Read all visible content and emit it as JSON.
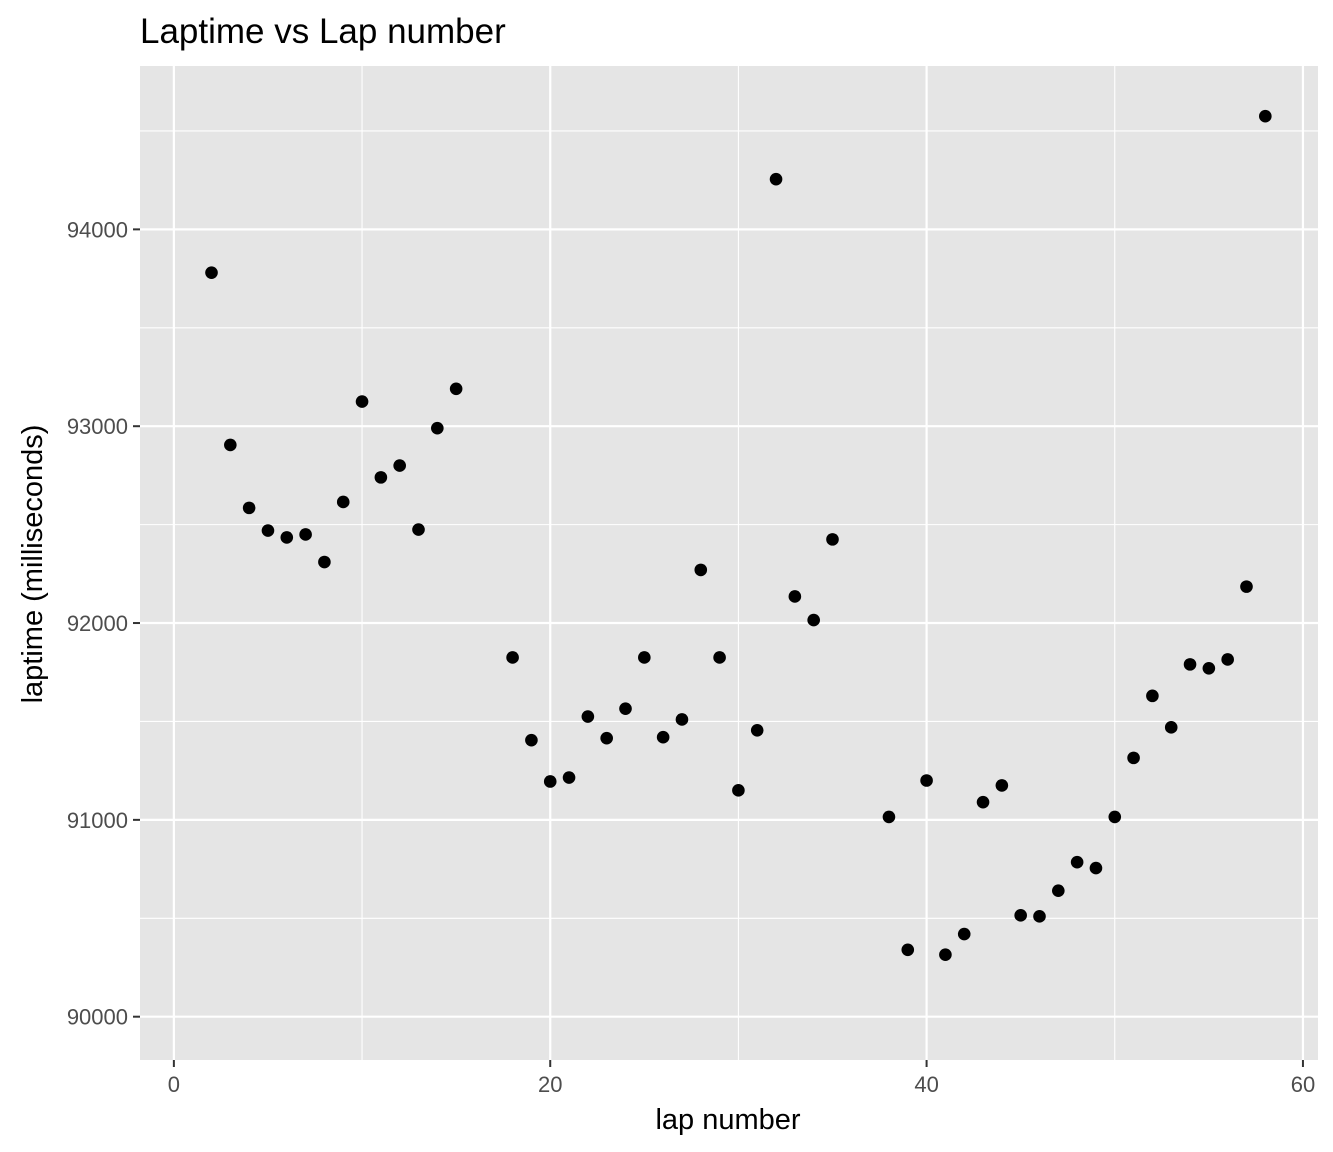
{
  "chart_data": {
    "type": "scatter",
    "title": "Laptime vs Lap number",
    "xlabel": "lap number",
    "ylabel": "laptime (milliseconds)",
    "xlim": [
      -1.8,
      60.8
    ],
    "ylim": [
      89780,
      94830
    ],
    "x_ticks": [
      0,
      20,
      40,
      60
    ],
    "y_ticks": [
      90000,
      91000,
      92000,
      93000,
      94000
    ],
    "x_tick_labels": [
      "0",
      "20",
      "40",
      "60"
    ],
    "y_tick_labels": [
      "90000",
      "91000",
      "92000",
      "93000",
      "94000"
    ],
    "grid": true,
    "legend": "none",
    "colors": {
      "panel": "#e5e5e5",
      "grid": "#ffffff",
      "point": "#000000",
      "tick": "#333333"
    },
    "points": [
      {
        "x": 2,
        "y": 93780
      },
      {
        "x": 3,
        "y": 92905
      },
      {
        "x": 4,
        "y": 92585
      },
      {
        "x": 5,
        "y": 92470
      },
      {
        "x": 6,
        "y": 92435
      },
      {
        "x": 7,
        "y": 92450
      },
      {
        "x": 8,
        "y": 92310
      },
      {
        "x": 9,
        "y": 92615
      },
      {
        "x": 10,
        "y": 93125
      },
      {
        "x": 11,
        "y": 92740
      },
      {
        "x": 12,
        "y": 92800
      },
      {
        "x": 13,
        "y": 92475
      },
      {
        "x": 14,
        "y": 92990
      },
      {
        "x": 15,
        "y": 93190
      },
      {
        "x": 18,
        "y": 91825
      },
      {
        "x": 19,
        "y": 91405
      },
      {
        "x": 20,
        "y": 91195
      },
      {
        "x": 21,
        "y": 91215
      },
      {
        "x": 22,
        "y": 91525
      },
      {
        "x": 23,
        "y": 91415
      },
      {
        "x": 24,
        "y": 91565
      },
      {
        "x": 25,
        "y": 91825
      },
      {
        "x": 26,
        "y": 91420
      },
      {
        "x": 27,
        "y": 91510
      },
      {
        "x": 28,
        "y": 92270
      },
      {
        "x": 29,
        "y": 91825
      },
      {
        "x": 30,
        "y": 91150
      },
      {
        "x": 31,
        "y": 91455
      },
      {
        "x": 32,
        "y": 94255
      },
      {
        "x": 33,
        "y": 92135
      },
      {
        "x": 34,
        "y": 92015
      },
      {
        "x": 35,
        "y": 92425
      },
      {
        "x": 38,
        "y": 91015
      },
      {
        "x": 39,
        "y": 90340
      },
      {
        "x": 40,
        "y": 91200
      },
      {
        "x": 41,
        "y": 90315
      },
      {
        "x": 42,
        "y": 90420
      },
      {
        "x": 43,
        "y": 91090
      },
      {
        "x": 44,
        "y": 91175
      },
      {
        "x": 45,
        "y": 90515
      },
      {
        "x": 46,
        "y": 90510
      },
      {
        "x": 47,
        "y": 90640
      },
      {
        "x": 48,
        "y": 90785
      },
      {
        "x": 49,
        "y": 90755
      },
      {
        "x": 50,
        "y": 91015
      },
      {
        "x": 51,
        "y": 91315
      },
      {
        "x": 52,
        "y": 91630
      },
      {
        "x": 53,
        "y": 91470
      },
      {
        "x": 54,
        "y": 91790
      },
      {
        "x": 55,
        "y": 91770
      },
      {
        "x": 56,
        "y": 91815
      },
      {
        "x": 57,
        "y": 92185
      },
      {
        "x": 58,
        "y": 94575
      }
    ]
  }
}
